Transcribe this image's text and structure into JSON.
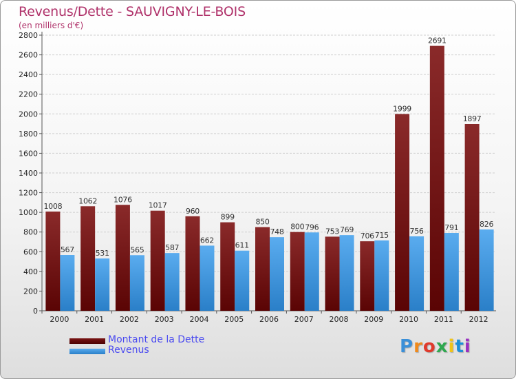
{
  "title": "Revenus/Dette - SAUVIGNY-LE-BOIS",
  "subtitle": "(en milliers d'€)",
  "legend": {
    "debt_label": "Montant de la Dette",
    "revenue_label": "Revenus"
  },
  "logo": {
    "text": "Proxiti",
    "colors": [
      "#3a8fd8",
      "#f08a1c",
      "#e03a2c",
      "#2fa84f",
      "#f0c419",
      "#1c8fd8",
      "#9a2fc0"
    ]
  },
  "colors": {
    "debt": "#7a1414",
    "revenue": "#3d95de",
    "title": "#b0336b",
    "legend_text": "#4a4af0"
  },
  "chart_data": {
    "type": "bar",
    "categories": [
      "2000",
      "2001",
      "2002",
      "2003",
      "2004",
      "2005",
      "2006",
      "2007",
      "2008",
      "2009",
      "2010",
      "2011",
      "2012"
    ],
    "series": [
      {
        "name": "Montant de la Dette",
        "values": [
          1008,
          1062,
          1076,
          1017,
          960,
          899,
          850,
          800,
          753,
          706,
          1999,
          2691,
          1897
        ]
      },
      {
        "name": "Revenus",
        "values": [
          567,
          531,
          565,
          587,
          662,
          611,
          748,
          796,
          769,
          715,
          756,
          791,
          826
        ]
      }
    ],
    "ylim": [
      0,
      2800
    ],
    "yticks": [
      0,
      200,
      400,
      600,
      800,
      1000,
      1200,
      1400,
      1600,
      1800,
      2000,
      2200,
      2400,
      2600,
      2800
    ],
    "grid": true,
    "legend_position": "bottom-left"
  }
}
